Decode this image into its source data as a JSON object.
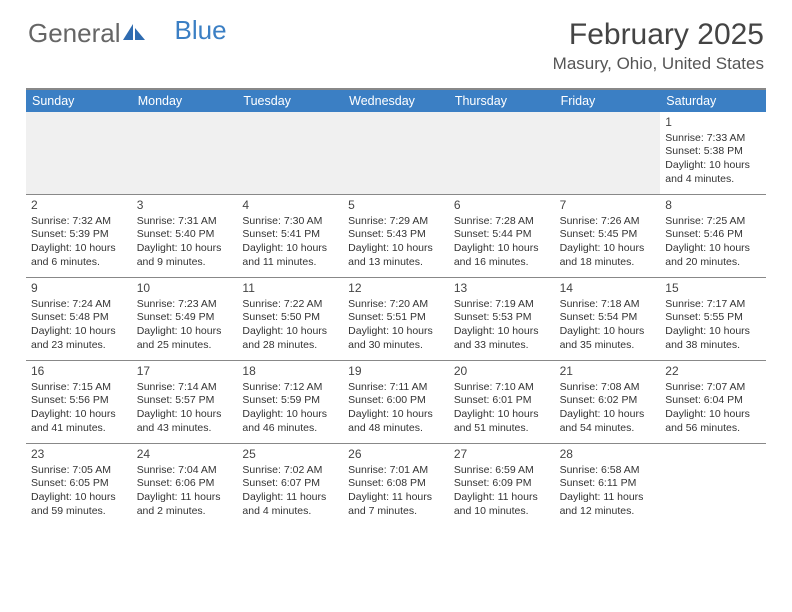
{
  "logo": {
    "text1": "General",
    "text2": "Blue"
  },
  "title": "February 2025",
  "location": "Masury, Ohio, United States",
  "colors": {
    "header_bg": "#3b7fc4",
    "header_text": "#ffffff",
    "border": "#888888",
    "blank_row": "#f0f0f0",
    "text": "#333333",
    "logo_gray": "#666666",
    "logo_blue": "#3b7fc4"
  },
  "day_names": [
    "Sunday",
    "Monday",
    "Tuesday",
    "Wednesday",
    "Thursday",
    "Friday",
    "Saturday"
  ],
  "weeks": [
    [
      null,
      null,
      null,
      null,
      null,
      null,
      {
        "n": "1",
        "sr": "Sunrise: 7:33 AM",
        "ss": "Sunset: 5:38 PM",
        "dl": "Daylight: 10 hours and 4 minutes."
      }
    ],
    [
      {
        "n": "2",
        "sr": "Sunrise: 7:32 AM",
        "ss": "Sunset: 5:39 PM",
        "dl": "Daylight: 10 hours and 6 minutes."
      },
      {
        "n": "3",
        "sr": "Sunrise: 7:31 AM",
        "ss": "Sunset: 5:40 PM",
        "dl": "Daylight: 10 hours and 9 minutes."
      },
      {
        "n": "4",
        "sr": "Sunrise: 7:30 AM",
        "ss": "Sunset: 5:41 PM",
        "dl": "Daylight: 10 hours and 11 minutes."
      },
      {
        "n": "5",
        "sr": "Sunrise: 7:29 AM",
        "ss": "Sunset: 5:43 PM",
        "dl": "Daylight: 10 hours and 13 minutes."
      },
      {
        "n": "6",
        "sr": "Sunrise: 7:28 AM",
        "ss": "Sunset: 5:44 PM",
        "dl": "Daylight: 10 hours and 16 minutes."
      },
      {
        "n": "7",
        "sr": "Sunrise: 7:26 AM",
        "ss": "Sunset: 5:45 PM",
        "dl": "Daylight: 10 hours and 18 minutes."
      },
      {
        "n": "8",
        "sr": "Sunrise: 7:25 AM",
        "ss": "Sunset: 5:46 PM",
        "dl": "Daylight: 10 hours and 20 minutes."
      }
    ],
    [
      {
        "n": "9",
        "sr": "Sunrise: 7:24 AM",
        "ss": "Sunset: 5:48 PM",
        "dl": "Daylight: 10 hours and 23 minutes."
      },
      {
        "n": "10",
        "sr": "Sunrise: 7:23 AM",
        "ss": "Sunset: 5:49 PM",
        "dl": "Daylight: 10 hours and 25 minutes."
      },
      {
        "n": "11",
        "sr": "Sunrise: 7:22 AM",
        "ss": "Sunset: 5:50 PM",
        "dl": "Daylight: 10 hours and 28 minutes."
      },
      {
        "n": "12",
        "sr": "Sunrise: 7:20 AM",
        "ss": "Sunset: 5:51 PM",
        "dl": "Daylight: 10 hours and 30 minutes."
      },
      {
        "n": "13",
        "sr": "Sunrise: 7:19 AM",
        "ss": "Sunset: 5:53 PM",
        "dl": "Daylight: 10 hours and 33 minutes."
      },
      {
        "n": "14",
        "sr": "Sunrise: 7:18 AM",
        "ss": "Sunset: 5:54 PM",
        "dl": "Daylight: 10 hours and 35 minutes."
      },
      {
        "n": "15",
        "sr": "Sunrise: 7:17 AM",
        "ss": "Sunset: 5:55 PM",
        "dl": "Daylight: 10 hours and 38 minutes."
      }
    ],
    [
      {
        "n": "16",
        "sr": "Sunrise: 7:15 AM",
        "ss": "Sunset: 5:56 PM",
        "dl": "Daylight: 10 hours and 41 minutes."
      },
      {
        "n": "17",
        "sr": "Sunrise: 7:14 AM",
        "ss": "Sunset: 5:57 PM",
        "dl": "Daylight: 10 hours and 43 minutes."
      },
      {
        "n": "18",
        "sr": "Sunrise: 7:12 AM",
        "ss": "Sunset: 5:59 PM",
        "dl": "Daylight: 10 hours and 46 minutes."
      },
      {
        "n": "19",
        "sr": "Sunrise: 7:11 AM",
        "ss": "Sunset: 6:00 PM",
        "dl": "Daylight: 10 hours and 48 minutes."
      },
      {
        "n": "20",
        "sr": "Sunrise: 7:10 AM",
        "ss": "Sunset: 6:01 PM",
        "dl": "Daylight: 10 hours and 51 minutes."
      },
      {
        "n": "21",
        "sr": "Sunrise: 7:08 AM",
        "ss": "Sunset: 6:02 PM",
        "dl": "Daylight: 10 hours and 54 minutes."
      },
      {
        "n": "22",
        "sr": "Sunrise: 7:07 AM",
        "ss": "Sunset: 6:04 PM",
        "dl": "Daylight: 10 hours and 56 minutes."
      }
    ],
    [
      {
        "n": "23",
        "sr": "Sunrise: 7:05 AM",
        "ss": "Sunset: 6:05 PM",
        "dl": "Daylight: 10 hours and 59 minutes."
      },
      {
        "n": "24",
        "sr": "Sunrise: 7:04 AM",
        "ss": "Sunset: 6:06 PM",
        "dl": "Daylight: 11 hours and 2 minutes."
      },
      {
        "n": "25",
        "sr": "Sunrise: 7:02 AM",
        "ss": "Sunset: 6:07 PM",
        "dl": "Daylight: 11 hours and 4 minutes."
      },
      {
        "n": "26",
        "sr": "Sunrise: 7:01 AM",
        "ss": "Sunset: 6:08 PM",
        "dl": "Daylight: 11 hours and 7 minutes."
      },
      {
        "n": "27",
        "sr": "Sunrise: 6:59 AM",
        "ss": "Sunset: 6:09 PM",
        "dl": "Daylight: 11 hours and 10 minutes."
      },
      {
        "n": "28",
        "sr": "Sunrise: 6:58 AM",
        "ss": "Sunset: 6:11 PM",
        "dl": "Daylight: 11 hours and 12 minutes."
      },
      null
    ]
  ]
}
